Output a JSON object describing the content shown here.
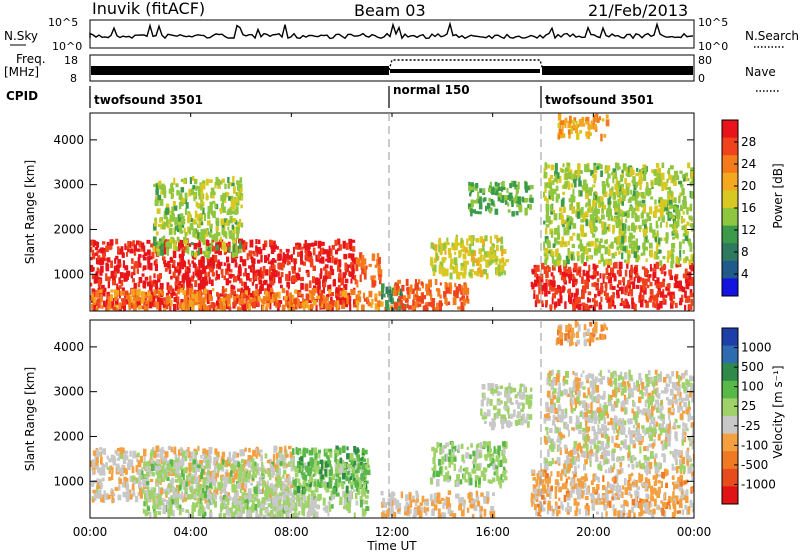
{
  "header": {
    "station": "Inuvik (fitACF)",
    "beam": "Beam 03",
    "date": "21/Feb/2013"
  },
  "top_panels": {
    "nsky_label": "N.Sky",
    "nsky_ticks": [
      "10^5",
      "10^0"
    ],
    "nsearch_label": "N.Search",
    "nsearch_ticks": [
      "10^5",
      "10^0"
    ],
    "freq_label": "Freq.",
    "freq_unit": "[MHz]",
    "freq_ticks": [
      "18",
      "8"
    ],
    "nave_label": "Nave",
    "nave_ticks": [
      "80",
      "0"
    ],
    "cpid_label": "CPID",
    "cpid_segments": [
      {
        "name": "twofsound 3501",
        "start_hour": 0,
        "end_hour": 12
      },
      {
        "name": "normal 150",
        "start_hour": 12,
        "end_hour": 18
      },
      {
        "name": "twofsound 3501",
        "start_hour": 18,
        "end_hour": 24
      }
    ]
  },
  "power_colorbar": {
    "title": "Power [dB]",
    "ticks": [
      "28",
      "24",
      "20",
      "16",
      "12",
      "8",
      "4"
    ],
    "colors": [
      "#e8141a",
      "#f0421c",
      "#f47a1c",
      "#f4a820",
      "#d9c822",
      "#8fc63f",
      "#3b9b4a",
      "#2e7a5e",
      "#1f5a8a",
      "#1414e0"
    ]
  },
  "velocity_colorbar": {
    "title": "Velocity [m s⁻¹]",
    "ticks": [
      "1000",
      "500",
      "100",
      "25",
      "-25",
      "-100",
      "-500",
      "-1000"
    ],
    "colors": [
      "#1e3fa8",
      "#2e6cb0",
      "#2f8a4a",
      "#58b848",
      "#9fd36a",
      "#c8c8c8",
      "#f5a040",
      "#f07a24",
      "#e84c1c",
      "#e01414"
    ]
  },
  "x_axis": {
    "label": "Time UT",
    "ticks": [
      "00:00",
      "04:00",
      "08:00",
      "12:00",
      "16:00",
      "20:00",
      "00:00"
    ]
  },
  "y_axis": {
    "label": "Slant Range [km]",
    "ticks": [
      "4000",
      "3000",
      "2000",
      "1000"
    ]
  },
  "chart_data": [
    {
      "type": "heatmap",
      "title": "",
      "xlabel": "",
      "ylabel": "Slant Range [km]",
      "xlim_hours": [
        0,
        24
      ],
      "ylim_km": [
        180,
        4600
      ],
      "colorbar": "Power [dB]",
      "colorbar_range": [
        0,
        30
      ],
      "regions": [
        {
          "t_start": 0.0,
          "t_end": 10.5,
          "range_km": [
            300,
            1800
          ],
          "value": 28
        },
        {
          "t_start": 0.0,
          "t_end": 12.0,
          "range_km": [
            250,
            700
          ],
          "value": 22
        },
        {
          "t_start": 2.5,
          "t_end": 6.0,
          "range_km": [
            1500,
            3200
          ],
          "value": 14
        },
        {
          "t_start": 10.5,
          "t_end": 11.5,
          "range_km": [
            800,
            1500
          ],
          "value": 24
        },
        {
          "t_start": 11.5,
          "t_end": 12.5,
          "range_km": [
            250,
            800
          ],
          "value": 10
        },
        {
          "t_start": 12.0,
          "t_end": 15.0,
          "range_km": [
            250,
            900
          ],
          "value": 24
        },
        {
          "t_start": 13.5,
          "t_end": 16.5,
          "range_km": [
            1000,
            1900
          ],
          "value": 16
        },
        {
          "t_start": 15.0,
          "t_end": 17.5,
          "range_km": [
            2400,
            3100
          ],
          "value": 12
        },
        {
          "t_start": 17.5,
          "t_end": 24.0,
          "range_km": [
            300,
            1300
          ],
          "value": 27
        },
        {
          "t_start": 18.0,
          "t_end": 24.0,
          "range_km": [
            1300,
            3500
          ],
          "value": 14
        },
        {
          "t_start": 18.5,
          "t_end": 20.5,
          "range_km": [
            4100,
            4600
          ],
          "value": 20
        }
      ]
    },
    {
      "type": "heatmap",
      "title": "",
      "xlabel": "Time UT",
      "ylabel": "Slant Range [km]",
      "xlim_hours": [
        0,
        24
      ],
      "ylim_km": [
        180,
        4600
      ],
      "colorbar": "Velocity [m s⁻¹]",
      "colorbar_range": [
        -1000,
        1000
      ],
      "regions": [
        {
          "t_start": 0.0,
          "t_end": 8.0,
          "range_km": [
            600,
            1800
          ],
          "value": -150
        },
        {
          "t_start": 2.0,
          "t_end": 11.0,
          "range_km": [
            300,
            1500
          ],
          "value": 60
        },
        {
          "t_start": 5.0,
          "t_end": 9.0,
          "range_km": [
            250,
            700
          ],
          "value": 0
        },
        {
          "t_start": 8.0,
          "t_end": 11.0,
          "range_km": [
            800,
            1800
          ],
          "value": 300
        },
        {
          "t_start": 11.5,
          "t_end": 16.0,
          "range_km": [
            250,
            800
          ],
          "value": -200
        },
        {
          "t_start": 13.5,
          "t_end": 16.5,
          "range_km": [
            1000,
            1900
          ],
          "value": 120
        },
        {
          "t_start": 15.5,
          "t_end": 17.5,
          "range_km": [
            2300,
            3200
          ],
          "value": 0
        },
        {
          "t_start": 17.5,
          "t_end": 24.0,
          "range_km": [
            300,
            1300
          ],
          "value": -250
        },
        {
          "t_start": 18.0,
          "t_end": 24.0,
          "range_km": [
            1300,
            3500
          ],
          "value": -90
        },
        {
          "t_start": 18.5,
          "t_end": 20.5,
          "range_km": [
            4100,
            4600
          ],
          "value": -300
        }
      ]
    }
  ]
}
